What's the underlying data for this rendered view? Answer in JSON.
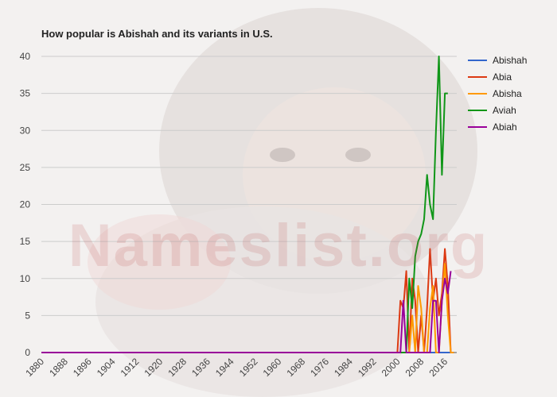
{
  "watermark": "Nameslist.org",
  "chart_data": {
    "type": "line",
    "title": "How popular is Abishah and its variants in U.S.",
    "xlabel": "",
    "ylabel": "",
    "xlim": [
      1880,
      2020
    ],
    "ylim": [
      0,
      40
    ],
    "yticks": [
      0,
      5,
      10,
      15,
      20,
      25,
      30,
      35,
      40
    ],
    "xticks": [
      1880,
      1888,
      1896,
      1904,
      1912,
      1920,
      1928,
      1936,
      1944,
      1952,
      1960,
      1968,
      1976,
      1984,
      1992,
      2000,
      2008,
      2016
    ],
    "grid": true,
    "legend_position": "right",
    "series": [
      {
        "name": "Abishah",
        "color": "#3366cc",
        "points": [
          [
            1880,
            0
          ],
          [
            2019,
            0
          ]
        ]
      },
      {
        "name": "Abia",
        "color": "#dc3912",
        "points": [
          [
            1880,
            0
          ],
          [
            2000,
            0
          ],
          [
            2001,
            7
          ],
          [
            2002,
            6
          ],
          [
            2003,
            11
          ],
          [
            2004,
            0
          ],
          [
            2005,
            10
          ],
          [
            2006,
            7
          ],
          [
            2007,
            0
          ],
          [
            2008,
            5
          ],
          [
            2009,
            0
          ],
          [
            2010,
            6
          ],
          [
            2011,
            14
          ],
          [
            2012,
            7
          ],
          [
            2013,
            10
          ],
          [
            2014,
            5
          ],
          [
            2015,
            8
          ],
          [
            2016,
            14
          ],
          [
            2017,
            9
          ],
          [
            2018,
            0
          ],
          [
            2019,
            0
          ]
        ]
      },
      {
        "name": "Abisha",
        "color": "#ff9900",
        "points": [
          [
            1880,
            0
          ],
          [
            2004,
            0
          ],
          [
            2005,
            5
          ],
          [
            2006,
            0
          ],
          [
            2007,
            9
          ],
          [
            2008,
            6
          ],
          [
            2009,
            0
          ],
          [
            2010,
            0
          ],
          [
            2011,
            6
          ],
          [
            2012,
            9
          ],
          [
            2013,
            0
          ],
          [
            2014,
            0
          ],
          [
            2015,
            7
          ],
          [
            2016,
            12
          ],
          [
            2017,
            5
          ],
          [
            2018,
            0
          ],
          [
            2019,
            0
          ]
        ]
      },
      {
        "name": "Aviah",
        "color": "#109618",
        "points": [
          [
            1880,
            0
          ],
          [
            2003,
            0
          ],
          [
            2004,
            10
          ],
          [
            2005,
            6
          ],
          [
            2006,
            13
          ],
          [
            2007,
            15
          ],
          [
            2008,
            16
          ],
          [
            2009,
            18
          ],
          [
            2010,
            24
          ],
          [
            2011,
            20
          ],
          [
            2012,
            18
          ],
          [
            2013,
            30
          ],
          [
            2014,
            40
          ],
          [
            2015,
            24
          ],
          [
            2016,
            35
          ],
          [
            2017,
            35
          ]
        ]
      },
      {
        "name": "Abiah",
        "color": "#990099",
        "points": [
          [
            1880,
            0
          ],
          [
            2001,
            0
          ],
          [
            2002,
            7
          ],
          [
            2003,
            0
          ],
          [
            2004,
            0
          ],
          [
            2005,
            0
          ],
          [
            2006,
            0
          ],
          [
            2007,
            0
          ],
          [
            2008,
            0
          ],
          [
            2009,
            0
          ],
          [
            2010,
            0
          ],
          [
            2011,
            0
          ],
          [
            2012,
            7
          ],
          [
            2013,
            7
          ],
          [
            2014,
            0
          ],
          [
            2015,
            7
          ],
          [
            2016,
            10
          ],
          [
            2017,
            8
          ],
          [
            2018,
            11
          ]
        ]
      }
    ]
  }
}
